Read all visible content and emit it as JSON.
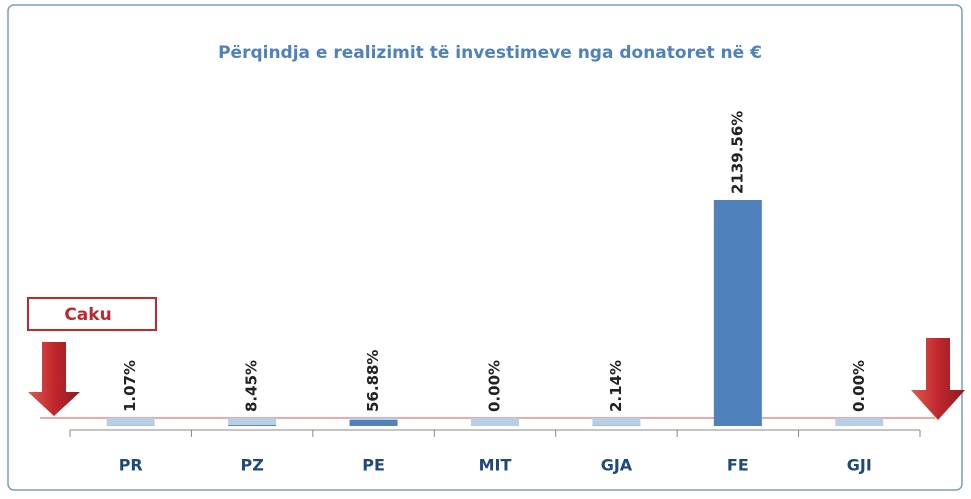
{
  "chart_data": {
    "type": "bar",
    "title": "Përqindja e realizimit të investimeve nga donatoret në €",
    "categories": [
      "PR",
      "PZ",
      "PE",
      "MIT",
      "GJA",
      "FE",
      "GJI"
    ],
    "values": [
      1.07,
      8.45,
      56.88,
      0.0,
      2.14,
      2139.56,
      0.0
    ],
    "value_labels": [
      "1.07%",
      "8.45%",
      "56.88%",
      "0.00%",
      "2.14%",
      "2139.56%",
      "0.00%"
    ],
    "color": "#4f81bd",
    "annotation": "Caku"
  }
}
